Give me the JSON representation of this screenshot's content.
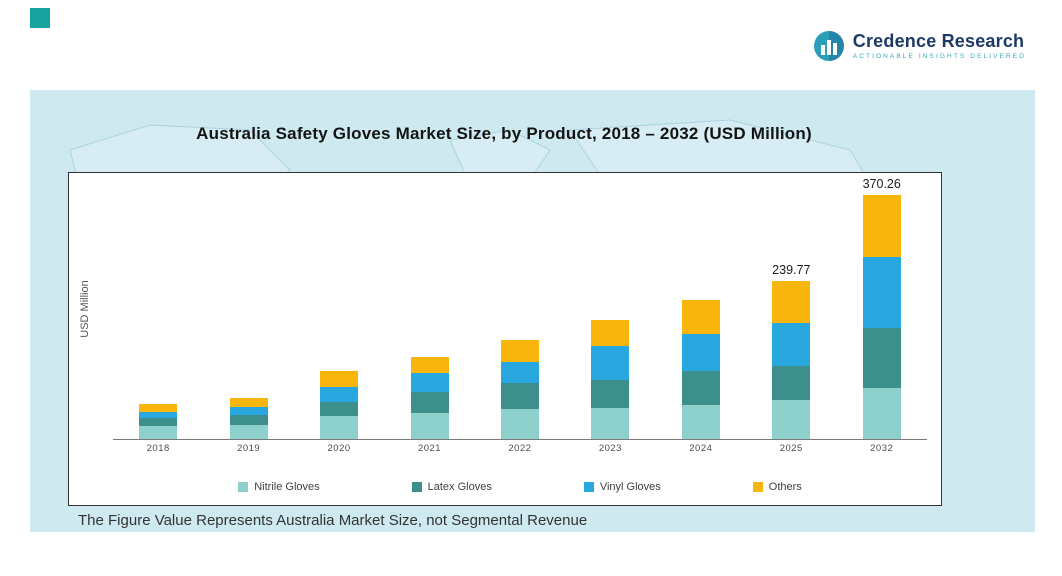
{
  "page": {
    "note": "The Figure Value Represents Australia Market Size, not Segmental Revenue"
  },
  "logo": {
    "name": "Credence Research",
    "tagline": "Actionable Insights Delivered",
    "accent_color": "#2b9fb8",
    "name_color": "#1d3a66"
  },
  "colors": {
    "panel_background": "#cfe9f1",
    "corner_square": "#18a29d"
  },
  "chart_data": {
    "type": "bar",
    "stacked": true,
    "title": "Australia Safety Gloves Market Size, by Product, 2018 – 2032 (USD Million)",
    "xlabel": "",
    "ylabel": "USD Million",
    "ylim": [
      0,
      380
    ],
    "grid": false,
    "legend_position": "bottom",
    "categories": [
      "2018",
      "2019",
      "2020",
      "2021",
      "2022",
      "2023",
      "2024",
      "2025",
      "2032"
    ],
    "series": [
      {
        "name": "Nitrile Gloves",
        "color": "#8ed1cc",
        "values": [
          20,
          22,
          35,
          39,
          45,
          47,
          52,
          59,
          78
        ]
      },
      {
        "name": "Latex Gloves",
        "color": "#3d8f8c",
        "values": [
          12,
          14,
          22,
          33,
          40,
          43,
          51,
          52,
          91
        ]
      },
      {
        "name": "Vinyl Gloves",
        "color": "#29a8e0",
        "values": [
          9,
          12,
          22,
          28,
          32,
          51,
          57,
          66,
          107
        ]
      },
      {
        "name": "Others",
        "color": "#f8b50e",
        "values": [
          12,
          14,
          24,
          25,
          33,
          40,
          52,
          62.77,
          94.26
        ]
      }
    ],
    "annotations": [
      "",
      "",
      "",
      "",
      "",
      "",
      "",
      "239.77",
      "370.26"
    ],
    "annotated_totals": {
      "2025": 239.77,
      "2032": 370.26
    }
  }
}
